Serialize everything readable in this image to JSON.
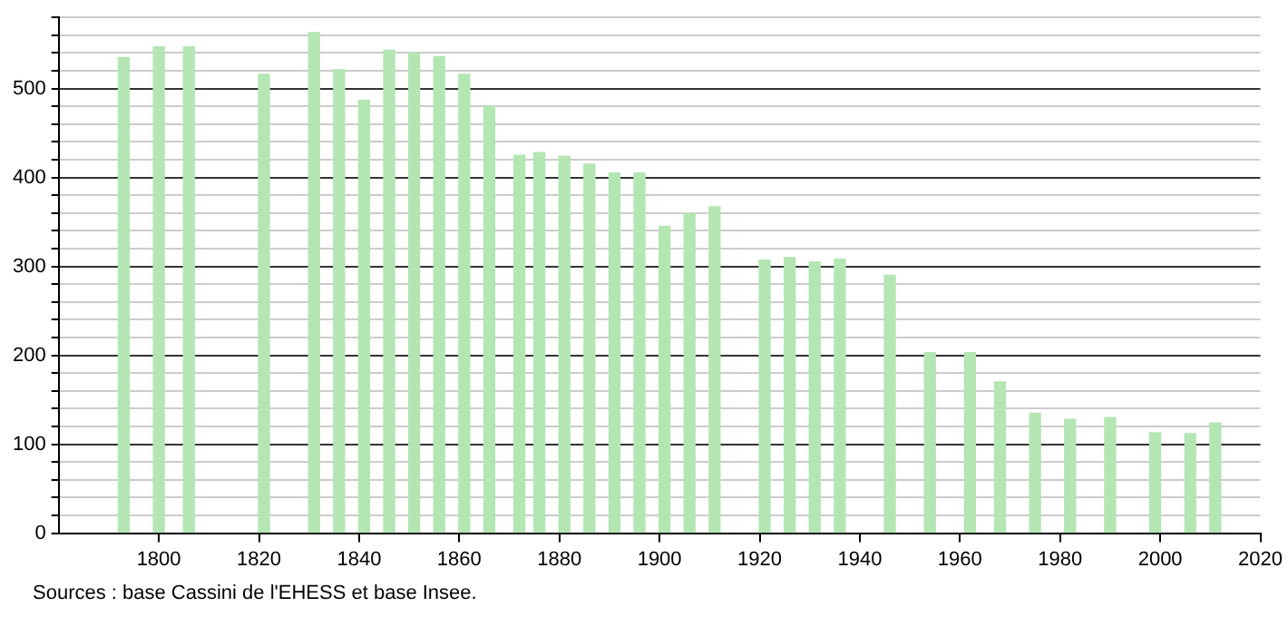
{
  "chart_data": {
    "type": "bar",
    "x": [
      1793,
      1800,
      1806,
      1821,
      1831,
      1836,
      1841,
      1846,
      1851,
      1856,
      1861,
      1866,
      1872,
      1876,
      1881,
      1886,
      1891,
      1896,
      1901,
      1906,
      1911,
      1921,
      1926,
      1931,
      1936,
      1946,
      1954,
      1962,
      1968,
      1975,
      1982,
      1990,
      1999,
      2006,
      2011
    ],
    "values": [
      535,
      547,
      547,
      516,
      563,
      521,
      487,
      543,
      540,
      536,
      516,
      480,
      425,
      428,
      424,
      415,
      405,
      405,
      345,
      360,
      367,
      307,
      310,
      305,
      308,
      290,
      203,
      203,
      170,
      135,
      128,
      130,
      113,
      112,
      124
    ],
    "color": "#b3e6b3",
    "xlim": [
      1780,
      2020
    ],
    "xticks": [
      1800,
      1820,
      1840,
      1860,
      1880,
      1900,
      1920,
      1940,
      1960,
      1980,
      2000,
      2020
    ],
    "ylim": [
      0,
      580
    ],
    "yticks": [
      0,
      {
        "value": 20,
        "label": null
      },
      {
        "value": 40,
        "label": null
      },
      {
        "value": 60,
        "label": null
      },
      {
        "value": 80,
        "label": null
      },
      100,
      {
        "value": 120,
        "label": null
      },
      {
        "value": 140,
        "label": null
      },
      {
        "value": 160,
        "label": null
      },
      {
        "value": 180,
        "label": null
      },
      200,
      {
        "value": 220,
        "label": null
      },
      {
        "value": 240,
        "label": null
      },
      {
        "value": 260,
        "label": null
      },
      {
        "value": 280,
        "label": null
      },
      300,
      {
        "value": 320,
        "label": null
      },
      {
        "value": 340,
        "label": null
      },
      {
        "value": 360,
        "label": null
      },
      {
        "value": 380,
        "label": null
      },
      400,
      {
        "value": 420,
        "label": null
      },
      {
        "value": 440,
        "label": null
      },
      {
        "value": 460,
        "label": null
      },
      {
        "value": 480,
        "label": null
      },
      500,
      {
        "value": 520,
        "label": null
      },
      {
        "value": 540,
        "label": null
      },
      {
        "value": 560,
        "label": null
      },
      {
        "value": 580,
        "label": null
      }
    ],
    "grid": "y",
    "annotations": [
      "Sources : base Cassini de l'EHESS et base Insee."
    ]
  }
}
